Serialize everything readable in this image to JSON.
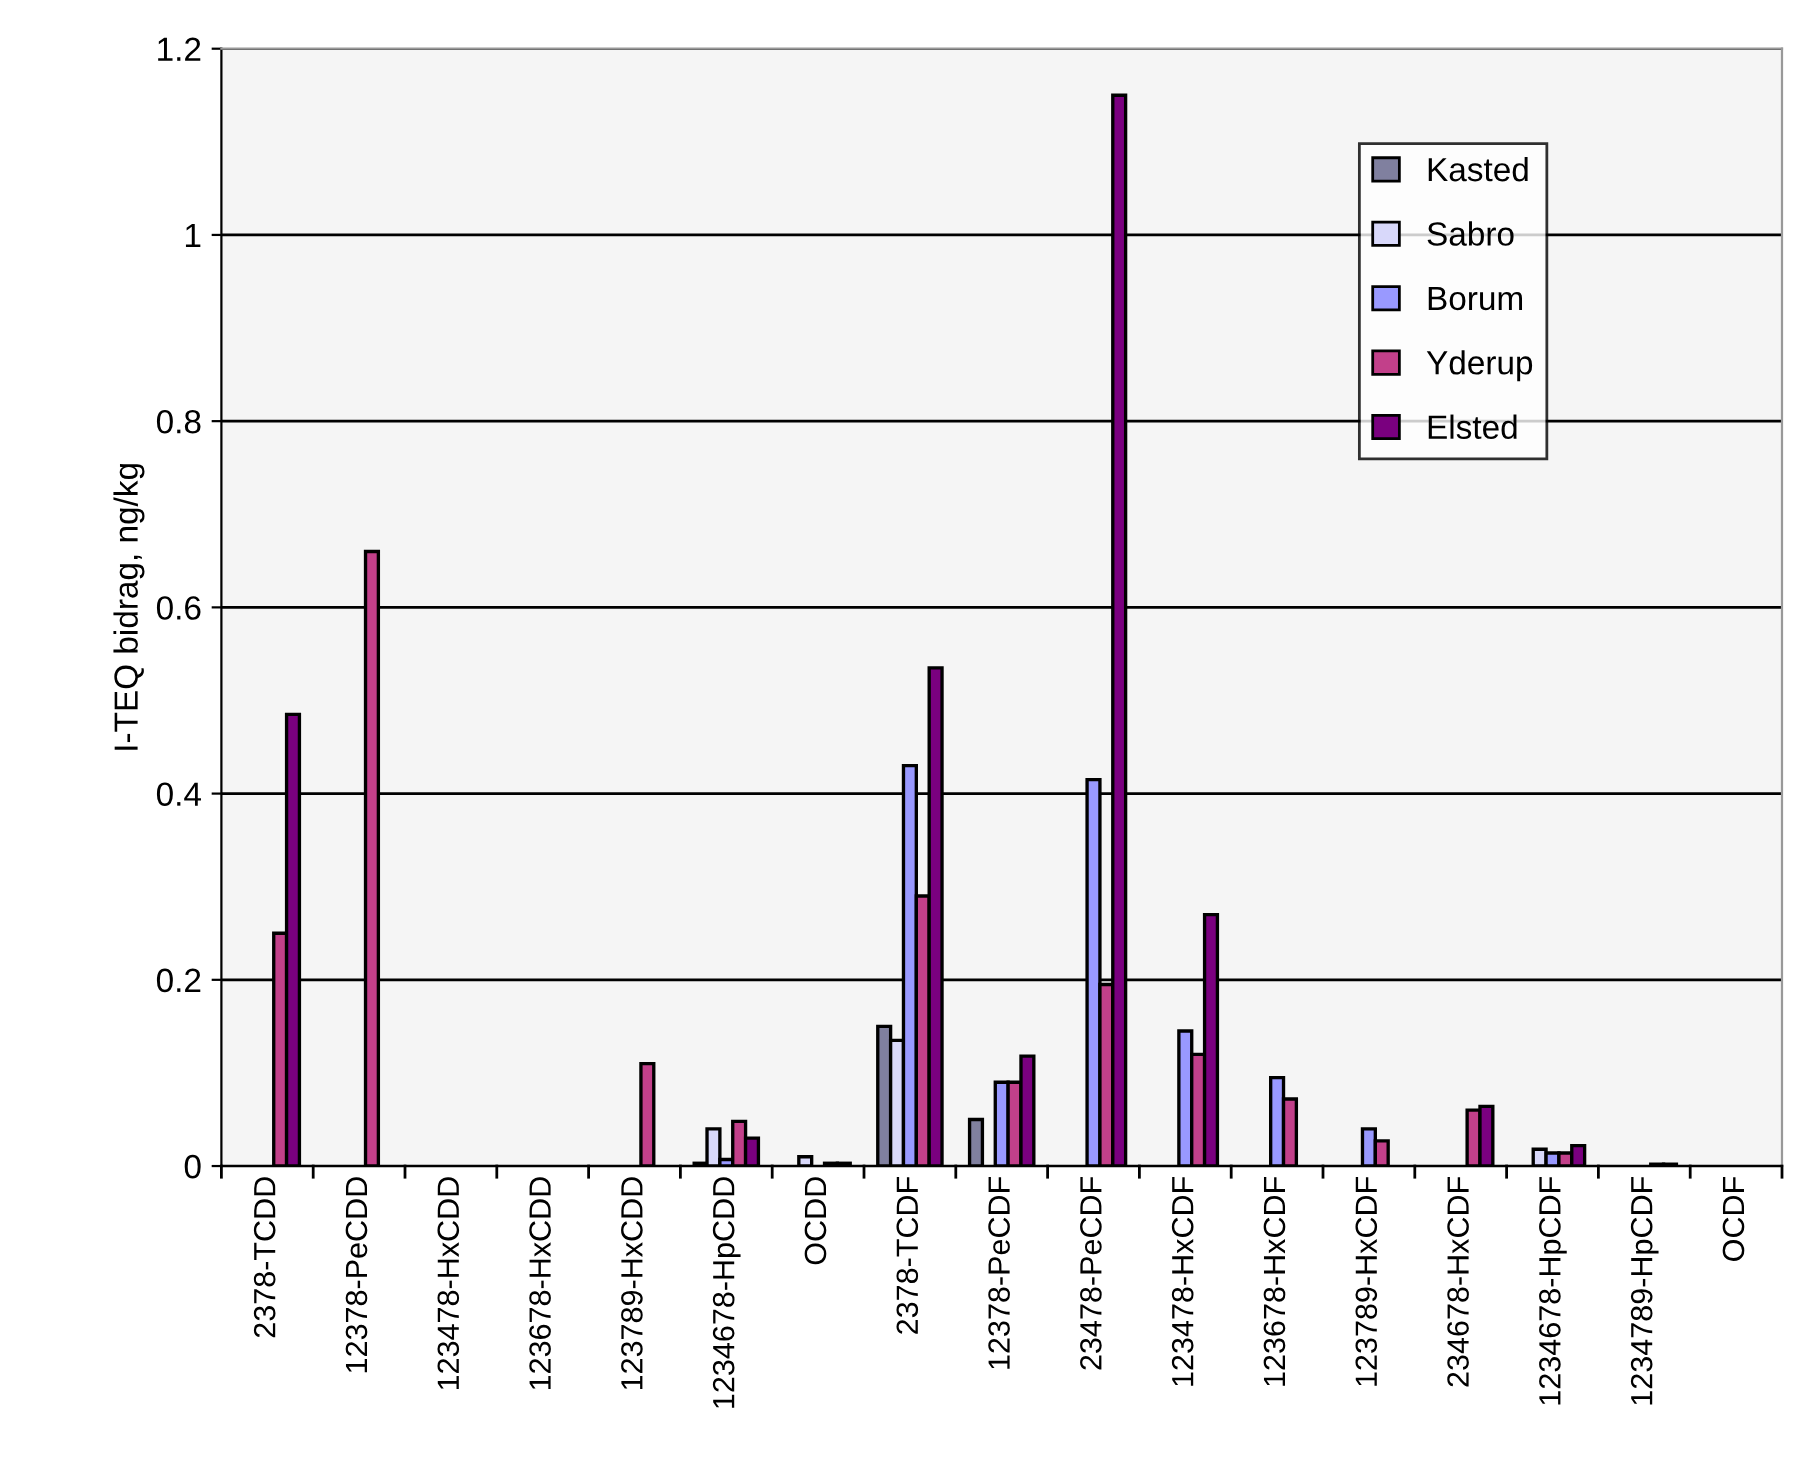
{
  "chart_data": {
    "type": "bar",
    "ylabel": "I-TEQ bidrag, ng/kg",
    "categories": [
      "2378-TCDD",
      "12378-PeCDD",
      "123478-HxCDD",
      "123678-HxCDD",
      "123789-HxCDD",
      "1234678-HpCDD",
      "OCDD",
      "2378-TCDF",
      "12378-PeCDF",
      "23478-PeCDF",
      "123478-HxCDF",
      "123678-HxCDF",
      "123789-HxCDF",
      "234678-HxCDF",
      "1234678-HpCDF",
      "1234789-HpCDF",
      "OCDF"
    ],
    "series": [
      {
        "name": "Kasted",
        "color": "#80809f",
        "values": [
          null,
          null,
          null,
          null,
          null,
          0.003,
          null,
          0.15,
          0.05,
          null,
          null,
          null,
          null,
          null,
          null,
          null,
          null
        ]
      },
      {
        "name": "Sabro",
        "color": "#d8d8fa",
        "values": [
          null,
          null,
          null,
          null,
          null,
          0.04,
          0.01,
          0.135,
          null,
          null,
          null,
          null,
          null,
          null,
          0.018,
          null,
          null
        ]
      },
      {
        "name": "Borum",
        "color": "#9999ff",
        "values": [
          null,
          null,
          null,
          null,
          null,
          0.007,
          null,
          0.43,
          0.09,
          0.415,
          0.145,
          0.095,
          0.04,
          null,
          0.014,
          null,
          null
        ]
      },
      {
        "name": "Yderup",
        "color": "#c2408a",
        "values": [
          0.25,
          0.66,
          null,
          null,
          0.11,
          0.048,
          0.003,
          0.29,
          0.09,
          0.195,
          0.12,
          0.072,
          0.027,
          0.06,
          0.014,
          0.002,
          null
        ]
      },
      {
        "name": "Elsted",
        "color": "#7a007f",
        "values": [
          0.485,
          null,
          null,
          null,
          null,
          0.03,
          0.003,
          0.535,
          0.118,
          1.15,
          0.27,
          null,
          null,
          0.064,
          0.022,
          0.002,
          null
        ]
      }
    ],
    "ylim": [
      0,
      1.2
    ],
    "yticks": [
      0,
      0.2,
      0.4,
      0.6,
      0.8,
      1,
      1.2
    ],
    "grid": "y",
    "legend": "top right"
  }
}
